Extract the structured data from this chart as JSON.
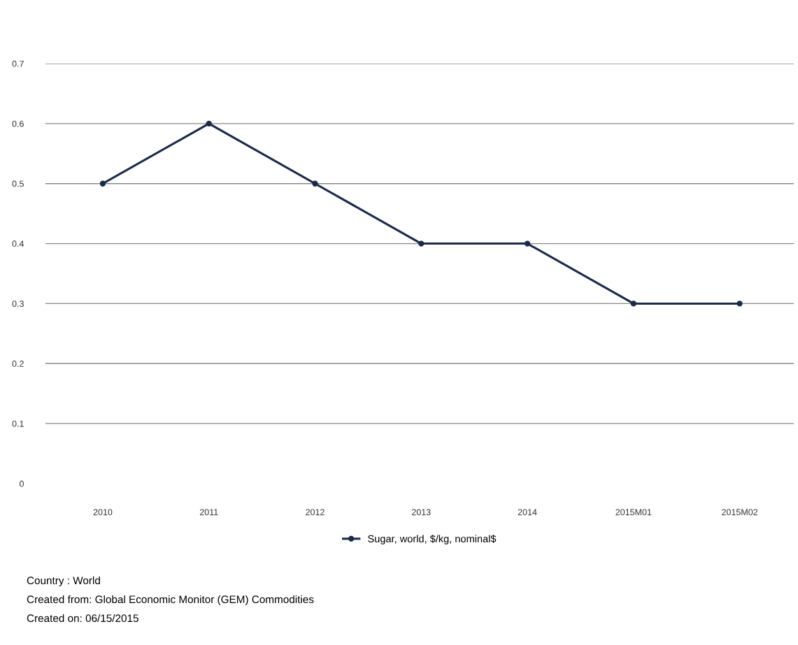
{
  "chart_data": {
    "type": "line",
    "categories": [
      "2010",
      "2011",
      "2012",
      "2013",
      "2014",
      "2015M01",
      "2015M02"
    ],
    "series": [
      {
        "name": "Sugar, world, $/kg, nominal$",
        "color": "#1b2a47",
        "values": [
          0.5,
          0.6,
          0.5,
          0.4,
          0.4,
          0.3,
          0.3
        ]
      }
    ],
    "ylim": [
      0,
      0.7
    ],
    "yticks": [
      0,
      0.1,
      0.2,
      0.3,
      0.4,
      0.5,
      0.6,
      0.7
    ],
    "grid": "y",
    "legend": "bottom",
    "marker": "circle",
    "line_style": "solid",
    "annotations": [
      "Country : World",
      "Created from: Global Economic Monitor (GEM) Commodities",
      "Created on: 06/15/2015"
    ]
  }
}
